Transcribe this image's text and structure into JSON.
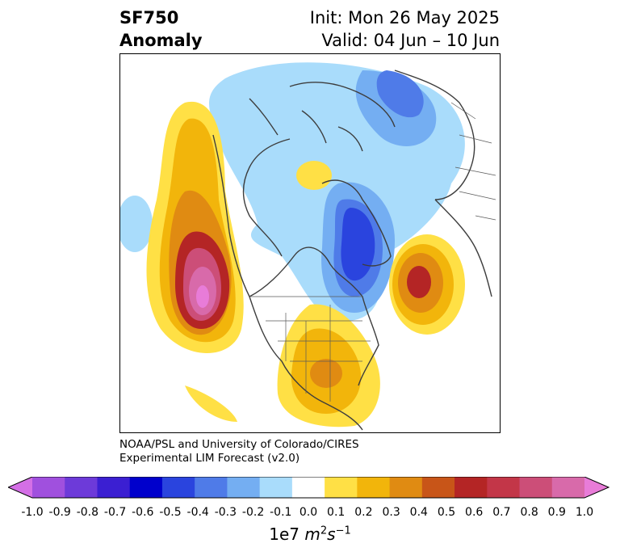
{
  "header": {
    "title_line1": "SF750",
    "title_line2": "Anomaly",
    "init": "Init: Mon 26 May 2025",
    "valid": "Valid: 04 Jun – 10 Jun"
  },
  "credit": {
    "line1": "NOAA/PSL and University of Colorado/CIRES",
    "line2": "Experimental LIM Forecast (v2.0)"
  },
  "colorbar": {
    "levels": [
      "-1.0",
      "-0.9",
      "-0.8",
      "-0.7",
      "-0.6",
      "-0.5",
      "-0.4",
      "-0.3",
      "-0.2",
      "-0.1",
      "0.0",
      "0.1",
      "0.2",
      "0.3",
      "0.4",
      "0.5",
      "0.6",
      "0.7",
      "0.8",
      "0.9",
      "1.0"
    ],
    "colors": [
      "#d46fe6",
      "#a050de",
      "#6d3ad9",
      "#3b1fd2",
      "#0000cc",
      "#2a44de",
      "#4f7be8",
      "#74aef2",
      "#a9dcfb",
      "#ffffff",
      "#ffe045",
      "#f2b50b",
      "#e08b12",
      "#c85518",
      "#b42525",
      "#c33648",
      "#cc4e78",
      "#d86aaa",
      "#e87cd8"
    ],
    "units_prefix": "1e7 ",
    "units_m": "m",
    "units_m_exp": "2",
    "units_s": "s",
    "units_s_exp": "−1"
  },
  "map": {
    "projection": "north-polar-stereographic",
    "variable": "750 hPa streamfunction anomaly"
  }
}
